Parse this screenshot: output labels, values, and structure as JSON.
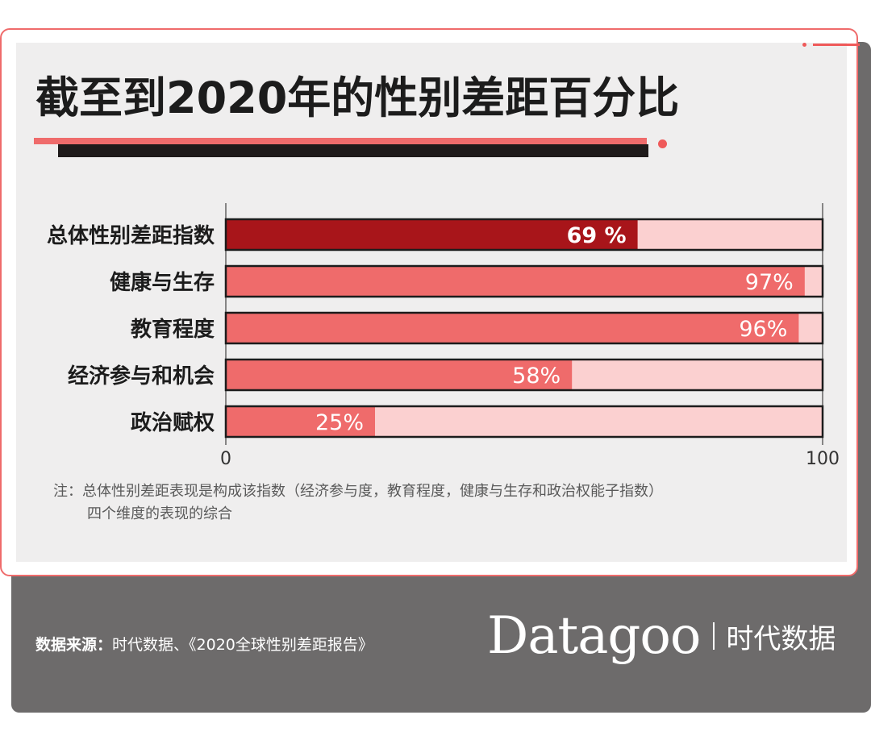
{
  "title": "截至到2020年的性别差距百分比",
  "chart_data": {
    "type": "bar",
    "orientation": "horizontal",
    "categories": [
      "总体性别差距指数",
      "健康与生存",
      "教育程度",
      "经济参与和机会",
      "政治赋权"
    ],
    "values": [
      69,
      97,
      96,
      58,
      25
    ],
    "value_labels": [
      "69 %",
      "97%",
      "96%",
      "58%",
      "25%"
    ],
    "xlim": [
      0,
      100
    ],
    "x_ticks": [
      "0",
      "100"
    ],
    "colors": {
      "highlight_bar": "#a8151a",
      "bar": "#ef6b6b",
      "track": "#fbd0d0",
      "border": "#1c1c1c"
    },
    "highlight_index": 0
  },
  "note": {
    "line1": "注：总体性别差距表现是构成该指数（经济参与度，教育程度，健康与生存和政治权能子指数）",
    "line2": "四个维度的表现的综合"
  },
  "footer": {
    "source_label": "数据来源：",
    "source_text": "时代数据、《2020全球性别差距报告》",
    "brand_logo": "Datagoo",
    "brand_cn": "时代数据"
  },
  "colors": {
    "accent": "#ef6b6b",
    "dark_panel": "#6d6b6b"
  }
}
